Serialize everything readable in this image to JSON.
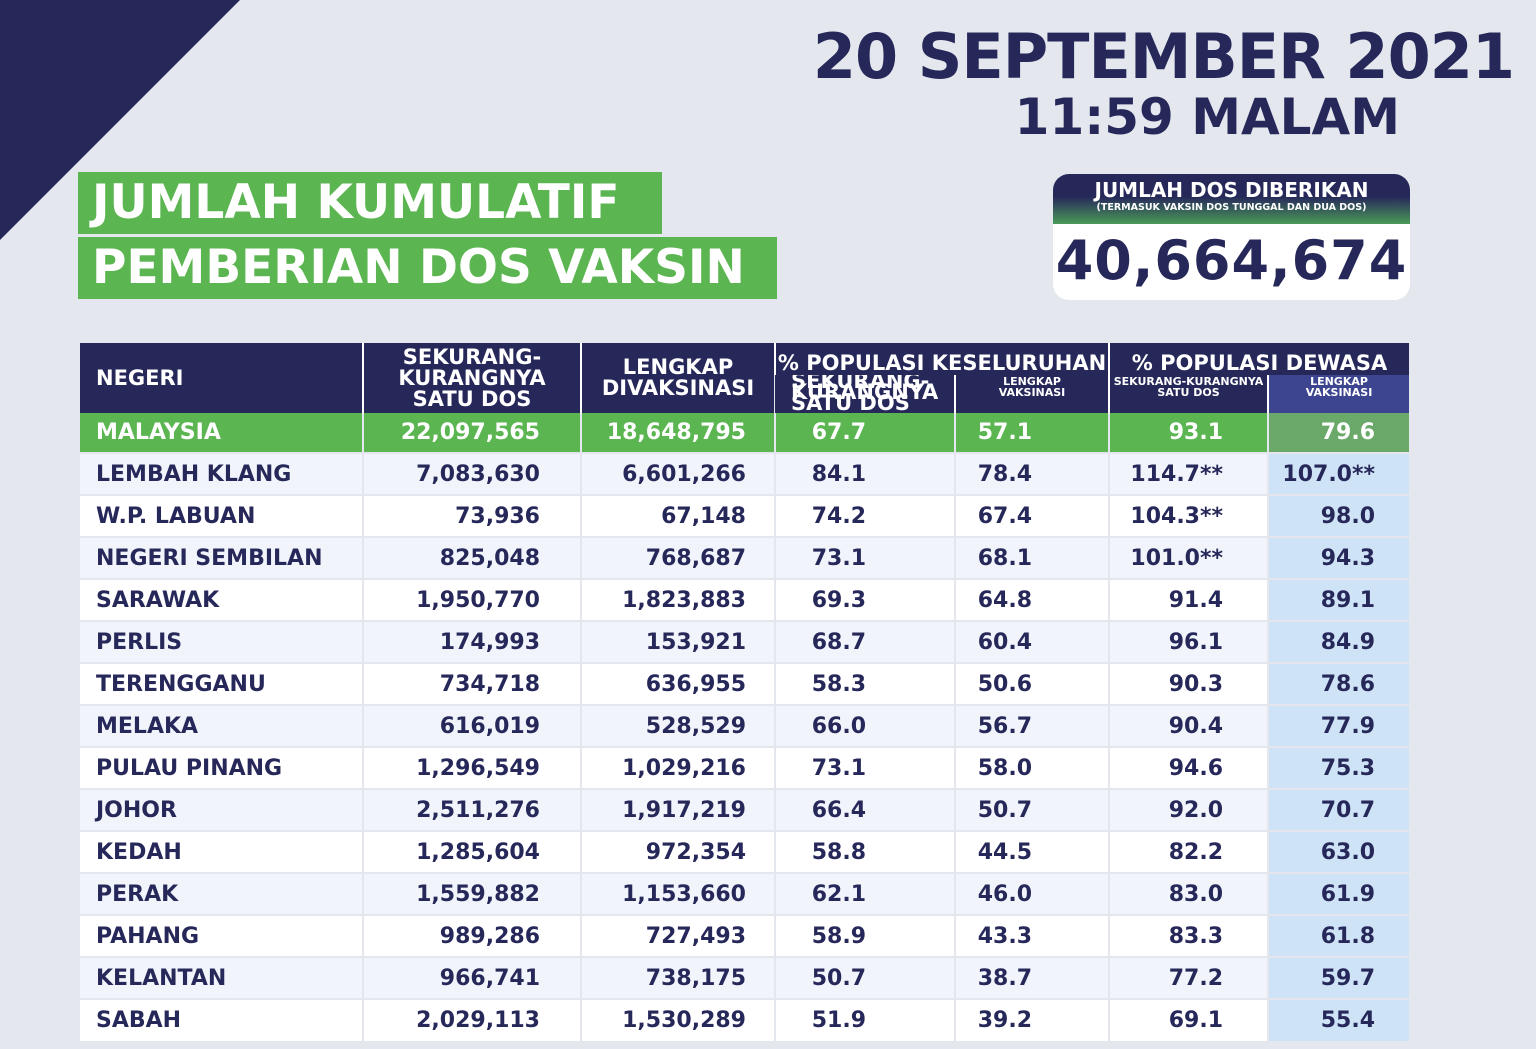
{
  "header": {
    "date": "20 SEPTEMBER 2021",
    "time": "11:59 MALAM"
  },
  "title": {
    "line1": "JUMLAH KUMULATIF",
    "line2": "PEMBERIAN DOS VAKSIN"
  },
  "doses_box": {
    "title": "JUMLAH DOS DIBERIKAN",
    "subtitle": "(TERMASUK VAKSIN DOS TUNGGAL DAN DUA DOS)",
    "value": "40,664,674"
  },
  "table": {
    "headers": {
      "negeri": "NEGERI",
      "one_dose": "SEKURANG-KURANGNYA SATU DOS",
      "complete": "LENGKAP DIVAKSINASI",
      "pop_total": "% POPULASI KESELURUHAN",
      "pop_adult": "% POPULASI DEWASA",
      "sub_one_dose": "SEKURANG-KURANGNYA SATU DOS",
      "sub_complete": "LENGKAP VAKSINASI"
    },
    "total": {
      "name": "MALAYSIA",
      "one_dose": "22,097,565",
      "complete": "18,648,795",
      "pct_all_one": "67.7",
      "pct_all_full": "57.1",
      "pct_adult_one": "93.1",
      "pct_adult_full": "79.6"
    },
    "rows": [
      {
        "name": "LEMBAH KLANG",
        "one_dose": "7,083,630",
        "complete": "6,601,266",
        "pct_all_one": "84.1",
        "pct_all_full": "78.4",
        "pct_adult_one": "114.7**",
        "pct_adult_full": "107.0**"
      },
      {
        "name": "W.P. LABUAN",
        "one_dose": "73,936",
        "complete": "67,148",
        "pct_all_one": "74.2",
        "pct_all_full": "67.4",
        "pct_adult_one": "104.3**",
        "pct_adult_full": "98.0"
      },
      {
        "name": "NEGERI SEMBILAN",
        "one_dose": "825,048",
        "complete": "768,687",
        "pct_all_one": "73.1",
        "pct_all_full": "68.1",
        "pct_adult_one": "101.0**",
        "pct_adult_full": "94.3"
      },
      {
        "name": "SARAWAK",
        "one_dose": "1,950,770",
        "complete": "1,823,883",
        "pct_all_one": "69.3",
        "pct_all_full": "64.8",
        "pct_adult_one": "91.4",
        "pct_adult_full": "89.1"
      },
      {
        "name": "PERLIS",
        "one_dose": "174,993",
        "complete": "153,921",
        "pct_all_one": "68.7",
        "pct_all_full": "60.4",
        "pct_adult_one": "96.1",
        "pct_adult_full": "84.9"
      },
      {
        "name": "TERENGGANU",
        "one_dose": "734,718",
        "complete": "636,955",
        "pct_all_one": "58.3",
        "pct_all_full": "50.6",
        "pct_adult_one": "90.3",
        "pct_adult_full": "78.6"
      },
      {
        "name": "MELAKA",
        "one_dose": "616,019",
        "complete": "528,529",
        "pct_all_one": "66.0",
        "pct_all_full": "56.7",
        "pct_adult_one": "90.4",
        "pct_adult_full": "77.9"
      },
      {
        "name": "PULAU PINANG",
        "one_dose": "1,296,549",
        "complete": "1,029,216",
        "pct_all_one": "73.1",
        "pct_all_full": "58.0",
        "pct_adult_one": "94.6",
        "pct_adult_full": "75.3"
      },
      {
        "name": "JOHOR",
        "one_dose": "2,511,276",
        "complete": "1,917,219",
        "pct_all_one": "66.4",
        "pct_all_full": "50.7",
        "pct_adult_one": "92.0",
        "pct_adult_full": "70.7"
      },
      {
        "name": "KEDAH",
        "one_dose": "1,285,604",
        "complete": "972,354",
        "pct_all_one": "58.8",
        "pct_all_full": "44.5",
        "pct_adult_one": "82.2",
        "pct_adult_full": "63.0"
      },
      {
        "name": "PERAK",
        "one_dose": "1,559,882",
        "complete": "1,153,660",
        "pct_all_one": "62.1",
        "pct_all_full": "46.0",
        "pct_adult_one": "83.0",
        "pct_adult_full": "61.9"
      },
      {
        "name": "PAHANG",
        "one_dose": "989,286",
        "complete": "727,493",
        "pct_all_one": "58.9",
        "pct_all_full": "43.3",
        "pct_adult_one": "83.3",
        "pct_adult_full": "61.8"
      },
      {
        "name": "KELANTAN",
        "one_dose": "966,741",
        "complete": "738,175",
        "pct_all_one": "50.7",
        "pct_all_full": "38.7",
        "pct_adult_one": "77.2",
        "pct_adult_full": "59.7"
      },
      {
        "name": "SABAH",
        "one_dose": "2,029,113",
        "complete": "1,530,289",
        "pct_all_one": "51.9",
        "pct_all_full": "39.2",
        "pct_adult_one": "69.1",
        "pct_adult_full": "55.4"
      }
    ]
  },
  "colors": {
    "navy": "#27285a",
    "green": "#5bb551",
    "highlight_column": "#cfe3f6",
    "background": "#e4e8ee"
  }
}
